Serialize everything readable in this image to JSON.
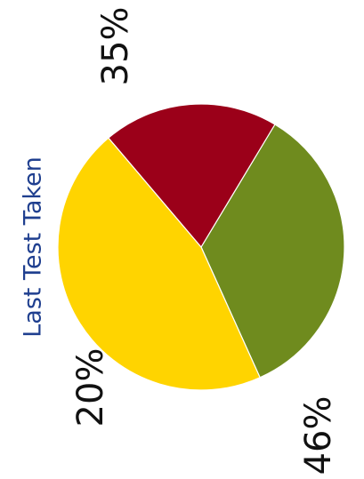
{
  "chart_data": {
    "type": "pie",
    "title": "Last Test Taken",
    "slices": [
      {
        "value": 35,
        "label": "35%",
        "color": "#6f8b1e"
      },
      {
        "value": 46,
        "label": "46%",
        "color": "#ffd400"
      },
      {
        "value": 20,
        "label": "20%",
        "color": "#9b0019"
      }
    ],
    "orientation": "rotated 90° counter-clockwise"
  }
}
